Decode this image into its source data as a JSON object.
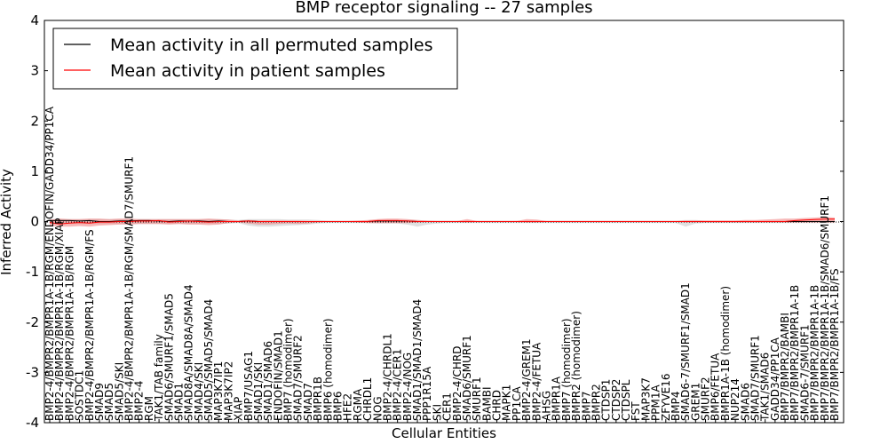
{
  "chart_data": {
    "type": "line",
    "title": "BMP receptor signaling -- 27 samples",
    "xlabel": "Cellular Entities",
    "ylabel": "Inferred Activity",
    "ylim": [
      -4,
      4
    ],
    "yticks": [
      "-4",
      "-3",
      "-2",
      "-1",
      "0",
      "1",
      "2",
      "3",
      "4"
    ],
    "grid": false,
    "legend_position": "top-left",
    "legend": [
      {
        "label": "Mean activity in all permuted samples",
        "color": "#000000"
      },
      {
        "label": "Mean activity in patient samples",
        "color": "#ff0000"
      }
    ],
    "categories": [
      "BMP2-4/BMPR2/BMPR1A-1B/RGM/ENDOFIN/GADD34/PP1CA",
      "BMP2-4/BMPR2/BMPR1A-1B/RGM/XIAP",
      "BMP2-4/BMPR2/BMPR1A-1B/RGM",
      "SOSTDC1",
      "BMP2-4/BMPR2/BMPR1A-1B/RGM/FS",
      "SMAD9",
      "SMAD5",
      "SMAD5/SKI",
      "BMP2-4/BMPR2/BMPR1A-1B/RGM/SMAD7/SMURF1",
      "BMP2-4",
      "RGM",
      "TAK1/TAB family",
      "SMAD6/SMURF1/SMAD5",
      "SMAD1",
      "SMAD8A/SMAD8A/SMAD4",
      "SMAD4/SKI",
      "SMAD5/SMAD5/SMAD4",
      "MAP3K7IP1",
      "MAP3K7IP2",
      "XIAP",
      "BMP7/USAG1",
      "SMAD1/SKI",
      "SMAD1/SMAD6",
      "ENDOFIN/SMAD1",
      "BMP7 (homodimer)",
      "SMAD7/SMURF2",
      "SMAD7",
      "BMPR1B",
      "BMP6 (homodimer)",
      "BMP6",
      "HFE2",
      "RGMA",
      "CHRDL1",
      "NOG",
      "BMP2-4/CHRDL1",
      "BMP2-4/CER1",
      "BMP2-4/NOG",
      "SMAD1/SMAD1/SMAD4",
      "PPP1R15A",
      "SKI",
      "CER1",
      "BMP2-4/CHRD",
      "SMAD6/SMURF1",
      "SMURF1",
      "BAMBI",
      "CHRD",
      "MAPK1",
      "PP1CA",
      "BMP2-4/GREM1",
      "BMP2-4/FETUA",
      "AHSG",
      "BMPR1A",
      "BMP7 (homodimer)",
      "BMPR2 (homodimer)",
      "BMP7",
      "BMPR2",
      "CTDSP1",
      "CTDSP2",
      "CTDSPL",
      "FST",
      "MAP3K7",
      "PPM1A",
      "ZFYVE16",
      "BMP4",
      "SMAD6-7/SMURF1/SMAD1",
      "GREM1",
      "SMURF2",
      "BMP6/FETUA",
      "BMPR1A-1B (homodimer)",
      "NUP214",
      "SMAD6",
      "SMAD7/SMURF1",
      "TAK1/SMAD6",
      "GADD34/PP1CA",
      "BMP7/BMPR2/BAMBI",
      "BMP7/BMPR2/BMPR1A-1B",
      "SMAD6-7/SMURF1",
      "BMP7/BMPR2/BMPR1A-1B",
      "BMP7/BMPR2/BMPR1A-1B/SMAD6/SMURF1",
      "BMP7/BMPR2/BMPR1A-1B/FS"
    ],
    "series": [
      {
        "name": "Mean activity in all permuted samples",
        "color": "#000000",
        "values": [
          0.02,
          0.02,
          0.02,
          0.01,
          0.02,
          0.0,
          0.0,
          0.01,
          0.01,
          0.02,
          0.02,
          0.01,
          0.0,
          0.01,
          0.01,
          0.01,
          0.0,
          0.01,
          0.0,
          0.0,
          0.01,
          0.0,
          0.0,
          0.0,
          0.0,
          0.0,
          0.0,
          0.0,
          0.0,
          0.0,
          0.0,
          0.0,
          0.0,
          0.01,
          0.01,
          0.01,
          0.01,
          0.0,
          0.0,
          0.0,
          0.0,
          0.0,
          0.0,
          0.0,
          0.0,
          0.0,
          0.0,
          0.0,
          0.0,
          0.0,
          0.0,
          0.0,
          0.0,
          0.0,
          0.0,
          0.0,
          0.0,
          0.0,
          0.0,
          0.0,
          0.0,
          0.0,
          0.0,
          0.0,
          0.0,
          0.0,
          0.0,
          0.0,
          0.0,
          0.0,
          0.0,
          0.0,
          0.0,
          0.0,
          0.0,
          0.0,
          0.0,
          0.0,
          0.0,
          0.0
        ]
      },
      {
        "name": "Mean activity in patient samples",
        "color": "#ff0000",
        "values": [
          -0.02,
          -0.05,
          -0.03,
          -0.02,
          -0.03,
          -0.01,
          -0.01,
          0.0,
          0.0,
          0.01,
          0.01,
          0.02,
          -0.01,
          0.0,
          0.01,
          0.0,
          -0.01,
          0.0,
          0.0,
          0.0,
          0.01,
          0.0,
          0.0,
          0.0,
          0.0,
          0.0,
          0.0,
          0.0,
          0.0,
          0.0,
          0.0,
          0.0,
          0.0,
          0.02,
          0.02,
          0.02,
          0.01,
          0.0,
          0.0,
          0.0,
          0.0,
          0.0,
          0.0,
          0.0,
          0.0,
          0.0,
          0.0,
          0.0,
          0.0,
          0.0,
          0.0,
          0.0,
          0.0,
          0.0,
          0.0,
          0.0,
          0.0,
          0.0,
          0.0,
          0.0,
          0.0,
          0.0,
          0.0,
          0.0,
          0.0,
          0.0,
          0.0,
          0.0,
          0.0,
          0.0,
          0.0,
          0.0,
          0.0,
          0.0,
          0.0,
          0.02,
          0.03,
          0.04,
          0.05,
          0.05
        ]
      }
    ],
    "patient_band": {
      "color": "#f08080",
      "upper": [
        0.04,
        0.06,
        0.05,
        0.05,
        0.06,
        0.06,
        0.05,
        0.06,
        0.06,
        0.05,
        0.05,
        0.05,
        0.05,
        0.05,
        0.05,
        0.05,
        0.06,
        0.05,
        0.04,
        0.02,
        0.03,
        0.02,
        0.02,
        0.02,
        0.02,
        0.02,
        0.01,
        0.01,
        0.01,
        0.01,
        0.01,
        0.02,
        0.03,
        0.05,
        0.06,
        0.06,
        0.05,
        0.03,
        0.02,
        0.01,
        0.01,
        0.01,
        0.05,
        0.01,
        0.01,
        0.01,
        0.01,
        0.01,
        0.05,
        0.04,
        0.01,
        0.01,
        0.01,
        0.01,
        0.01,
        0.01,
        0.01,
        0.01,
        0.01,
        0.01,
        0.01,
        0.01,
        0.01,
        0.01,
        0.02,
        0.02,
        0.02,
        0.02,
        0.02,
        0.02,
        0.03,
        0.03,
        0.04,
        0.05,
        0.06,
        0.06,
        0.07,
        0.08,
        0.09,
        0.08
      ],
      "lower": [
        -0.08,
        -0.1,
        -0.1,
        -0.09,
        -0.1,
        -0.08,
        -0.07,
        -0.06,
        -0.06,
        -0.05,
        -0.05,
        -0.05,
        -0.06,
        -0.05,
        -0.06,
        -0.06,
        -0.07,
        -0.06,
        -0.03,
        -0.02,
        -0.04,
        -0.06,
        -0.06,
        -0.05,
        -0.04,
        -0.05,
        -0.04,
        -0.02,
        -0.01,
        -0.01,
        -0.01,
        -0.02,
        -0.03,
        -0.03,
        -0.03,
        -0.03,
        -0.03,
        -0.02,
        -0.01,
        -0.01,
        -0.01,
        -0.01,
        -0.02,
        -0.01,
        -0.01,
        -0.01,
        -0.01,
        -0.01,
        -0.02,
        -0.02,
        -0.01,
        -0.01,
        -0.01,
        -0.01,
        -0.01,
        -0.01,
        -0.01,
        -0.01,
        -0.01,
        -0.01,
        -0.01,
        -0.01,
        -0.01,
        -0.01,
        -0.02,
        -0.02,
        -0.02,
        -0.02,
        -0.02,
        -0.02,
        -0.02,
        -0.02,
        -0.02,
        -0.02,
        -0.02,
        -0.02,
        -0.02,
        -0.02,
        -0.02,
        -0.02
      ]
    },
    "permuted_band": {
      "color": "#bbbbbb",
      "upper": [
        0.05,
        0.05,
        0.05,
        0.05,
        0.05,
        0.05,
        0.05,
        0.05,
        0.05,
        0.05,
        0.05,
        0.05,
        0.05,
        0.05,
        0.05,
        0.05,
        0.05,
        0.05,
        0.04,
        0.03,
        0.05,
        0.05,
        0.05,
        0.05,
        0.04,
        0.04,
        0.04,
        0.03,
        0.02,
        0.02,
        0.02,
        0.02,
        0.02,
        0.03,
        0.03,
        0.03,
        0.03,
        0.03,
        0.02,
        0.02,
        0.02,
        0.02,
        0.02,
        0.02,
        0.02,
        0.02,
        0.02,
        0.02,
        0.02,
        0.02,
        0.02,
        0.02,
        0.02,
        0.02,
        0.02,
        0.02,
        0.02,
        0.02,
        0.02,
        0.02,
        0.02,
        0.02,
        0.02,
        0.02,
        0.03,
        0.03,
        0.02,
        0.02,
        0.02,
        0.02,
        0.02,
        0.02,
        0.02,
        0.02,
        0.02,
        0.02,
        0.02,
        0.02,
        0.02,
        0.02
      ],
      "lower": [
        -0.05,
        -0.05,
        -0.05,
        -0.05,
        -0.05,
        -0.05,
        -0.05,
        -0.05,
        -0.05,
        -0.05,
        -0.05,
        -0.05,
        -0.05,
        -0.05,
        -0.05,
        -0.05,
        -0.05,
        -0.05,
        -0.04,
        -0.03,
        -0.08,
        -0.1,
        -0.1,
        -0.09,
        -0.08,
        -0.07,
        -0.06,
        -0.04,
        -0.03,
        -0.03,
        -0.03,
        -0.03,
        -0.03,
        -0.04,
        -0.04,
        -0.04,
        -0.06,
        -0.1,
        -0.06,
        -0.04,
        -0.03,
        -0.03,
        -0.03,
        -0.03,
        -0.03,
        -0.03,
        -0.03,
        -0.03,
        -0.03,
        -0.03,
        -0.03,
        -0.03,
        -0.03,
        -0.03,
        -0.03,
        -0.03,
        -0.03,
        -0.03,
        -0.03,
        -0.03,
        -0.03,
        -0.03,
        -0.03,
        -0.03,
        -0.1,
        -0.04,
        -0.03,
        -0.03,
        -0.03,
        -0.03,
        -0.03,
        -0.03,
        -0.03,
        -0.03,
        -0.03,
        -0.03,
        -0.03,
        -0.03,
        -0.03,
        -0.03
      ]
    }
  }
}
